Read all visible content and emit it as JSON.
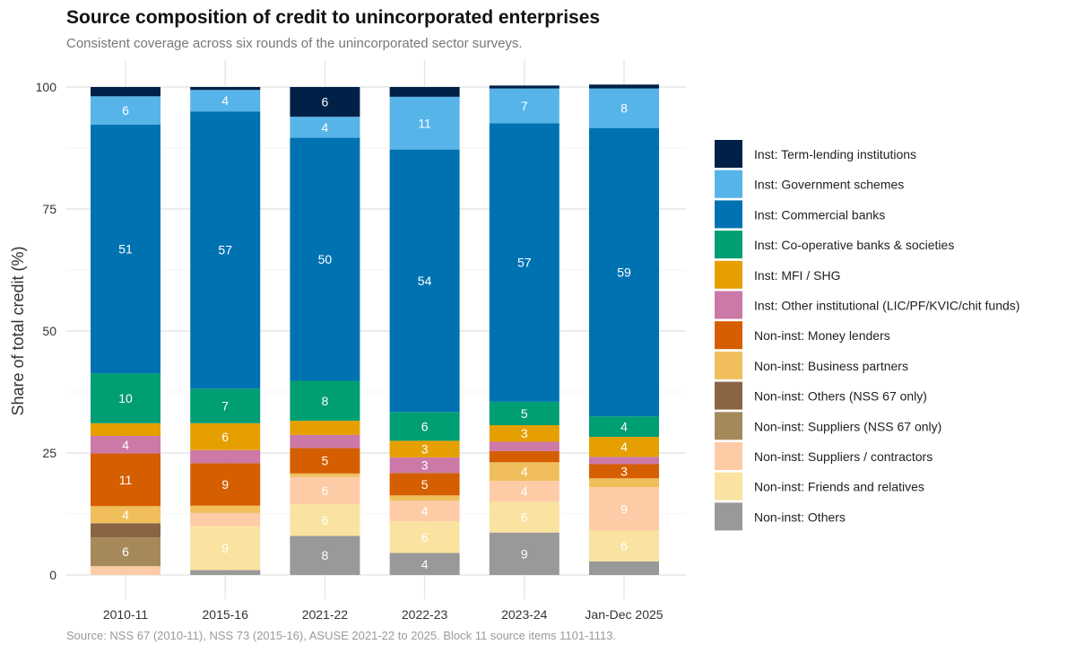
{
  "title": "Source composition of credit to unincorporated enterprises",
  "subtitle": "Consistent coverage across six rounds of the unincorporated sector surveys.",
  "caption": "Source: NSS 67 (2010-11), NSS 73 (2015-16), ASUSE 2021-22 to 2025. Block 11 source items 1101-1113.",
  "chart_data": {
    "type": "bar",
    "stacked": true,
    "title": "Source composition of credit to unincorporated enterprises",
    "subtitle": "Consistent coverage across six rounds of the unincorporated sector surveys.",
    "xlabel": "",
    "ylabel": "Share of total credit (%)",
    "ylim": [
      0,
      100
    ],
    "yticks": [
      0,
      25,
      50,
      75,
      100
    ],
    "grid": true,
    "legend_position": "right",
    "categories": [
      "2010-11",
      "2015-16",
      "2021-22",
      "2022-23",
      "2023-24",
      "Jan-Dec 2025"
    ],
    "series": [
      {
        "name": "Non-inst: Others",
        "color": "#999999",
        "values": [
          0,
          1,
          8,
          4.5,
          8.7,
          2.8
        ],
        "labels": [
          "",
          "",
          "8",
          "4",
          "9",
          ""
        ]
      },
      {
        "name": "Non-inst: Friends and relatives",
        "color": "#fae3a0",
        "values": [
          0,
          9,
          6.5,
          6.5,
          6.3,
          6.3
        ],
        "labels": [
          "",
          "9",
          "6",
          "6",
          "6",
          "6"
        ]
      },
      {
        "name": "Non-inst: Suppliers / contractors",
        "color": "#fecba7",
        "values": [
          1.8,
          2.7,
          5.6,
          4.2,
          4.3,
          8.9
        ],
        "labels": [
          "",
          "",
          "6",
          "4",
          "4",
          "9"
        ]
      },
      {
        "name": "Non-inst: Suppliers (NSS 67 only)",
        "color": "#a6895b",
        "values": [
          5.9,
          0,
          0,
          0,
          0,
          0
        ],
        "labels": [
          "6",
          "",
          "",
          "",
          "",
          ""
        ]
      },
      {
        "name": "Non-inst: Others (NSS 67 only)",
        "color": "#896544",
        "values": [
          2.9,
          0,
          0,
          0,
          0,
          0
        ],
        "labels": [
          "",
          "",
          "",
          "",
          "",
          ""
        ]
      },
      {
        "name": "Non-inst: Business partners",
        "color": "#f0bf5c",
        "values": [
          3.5,
          1.5,
          0.7,
          1.1,
          3.8,
          1.8
        ],
        "labels": [
          "4",
          "",
          "",
          "",
          "4",
          ""
        ]
      },
      {
        "name": "Non-inst: Money lenders",
        "color": "#d55e00",
        "values": [
          10.8,
          8.7,
          5.2,
          4.6,
          2.3,
          2.9
        ],
        "labels": [
          "11",
          "9",
          "5",
          "5",
          "",
          "3"
        ]
      },
      {
        "name": "Inst: Other institutional (LIC/PF/KVIC/chit funds)",
        "color": "#cc79a7",
        "values": [
          3.6,
          2.7,
          2.7,
          3.2,
          1.9,
          1.5
        ],
        "labels": [
          "4",
          "",
          "",
          "3",
          "",
          ""
        ]
      },
      {
        "name": "Inst: MFI / SHG",
        "color": "#e69f00",
        "values": [
          2.6,
          5.5,
          2.9,
          3.4,
          3.4,
          4.1
        ],
        "labels": [
          "",
          "6",
          "",
          "3",
          "3",
          "4"
        ]
      },
      {
        "name": "Inst: Co-operative banks & societies",
        "color": "#009e73",
        "values": [
          10.2,
          7.1,
          8.2,
          5.9,
          4.8,
          4.2
        ],
        "labels": [
          "10",
          "7",
          "8",
          "6",
          "5",
          "4"
        ]
      },
      {
        "name": "Inst: Commercial banks",
        "color": "#0072b2",
        "values": [
          51,
          56.8,
          49.8,
          53.8,
          57.1,
          59.1
        ],
        "labels": [
          "51",
          "57",
          "50",
          "54",
          "57",
          "59"
        ]
      },
      {
        "name": "Inst: Government schemes",
        "color": "#56b4e9",
        "values": [
          5.8,
          4.4,
          4.3,
          10.8,
          7.1,
          8.1
        ],
        "labels": [
          "6",
          "4",
          "4",
          "11",
          "7",
          "8"
        ]
      },
      {
        "name": "Inst: Term-lending institutions",
        "color": "#002147",
        "values": [
          1.9,
          0.6,
          6.1,
          2,
          0.6,
          0.8
        ],
        "labels": [
          "",
          "",
          "6",
          "",
          "",
          ""
        ]
      }
    ],
    "legend_order": [
      "Inst: Term-lending institutions",
      "Inst: Government schemes",
      "Inst: Commercial banks",
      "Inst: Co-operative banks & societies",
      "Inst: MFI / SHG",
      "Inst: Other institutional (LIC/PF/KVIC/chit funds)",
      "Non-inst: Money lenders",
      "Non-inst: Business partners",
      "Non-inst: Others (NSS 67 only)",
      "Non-inst: Suppliers (NSS 67 only)",
      "Non-inst: Suppliers / contractors",
      "Non-inst: Friends and relatives",
      "Non-inst: Others"
    ]
  }
}
